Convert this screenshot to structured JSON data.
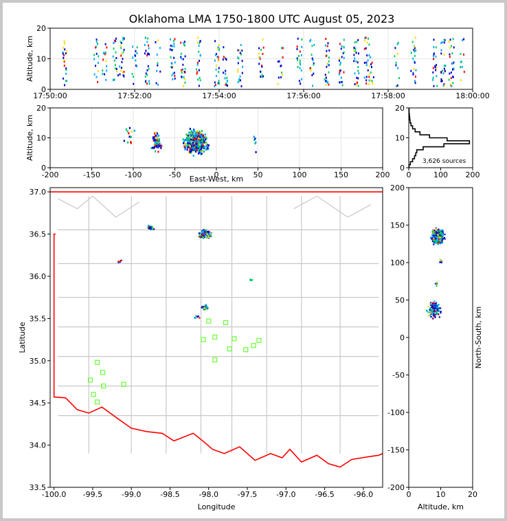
{
  "title": "Oklahoma LMA 1750-1800 UTC August 05, 2023",
  "colors": {
    "frame": "#c8c8c8",
    "border": "#ff0000",
    "county": "#c8c8c8",
    "station": "#66ff33",
    "histogram": "#000000",
    "source_palette": [
      "#0000cc",
      "#00aaff",
      "#00cc66",
      "#ffdd00",
      "#ff0000"
    ]
  },
  "chart_data": [
    {
      "id": "time-altitude",
      "type": "scatter",
      "xlabel": "",
      "ylabel": "Altitude, km",
      "xlim": [
        "17:50:00",
        "18:00:00"
      ],
      "ylim": [
        0,
        20
      ],
      "xticks": [
        "17:50:00",
        "17:52:00",
        "17:54:00",
        "17:56:00",
        "17:58:00",
        "18:00:00"
      ],
      "yticks": [
        0,
        10,
        20
      ],
      "burst_times_min": [
        0.35,
        1.1,
        1.3,
        1.55,
        1.7,
        2.0,
        2.3,
        2.55,
        2.9,
        3.15,
        3.5,
        3.95,
        4.15,
        4.5,
        5.0,
        5.45,
        5.9,
        6.2,
        6.55,
        6.9,
        7.25,
        7.5,
        7.6,
        8.2,
        8.6,
        9.1,
        9.3,
        9.5,
        9.75
      ],
      "altitude_range_km": [
        1,
        17
      ],
      "grid": true
    },
    {
      "id": "east-west-altitude",
      "type": "scatter",
      "xlabel": "East-West, km",
      "ylabel": "Altitude, km",
      "xlim": [
        -200,
        200
      ],
      "ylim": [
        0,
        20
      ],
      "xticks": [
        -200,
        -150,
        -100,
        -50,
        0,
        50,
        100,
        150,
        200
      ],
      "yticks": [
        0,
        10,
        20
      ],
      "clusters": [
        {
          "x": -25,
          "y": 8.5,
          "count": 500
        },
        {
          "x": -72,
          "y": 9,
          "count": 70
        },
        {
          "x": -105,
          "y": 10,
          "count": 12
        },
        {
          "x": 45,
          "y": 8.5,
          "count": 6
        }
      ],
      "grid": true
    },
    {
      "id": "altitude-histogram",
      "type": "line",
      "xlim": [
        0,
        200
      ],
      "ylim": [
        0,
        20
      ],
      "xticks": [
        0,
        100,
        200
      ],
      "yticks": [
        0,
        10,
        20
      ],
      "annotation": "3,626 sources",
      "profile": [
        {
          "altitude_km": 0.5,
          "count": 1
        },
        {
          "altitude_km": 1.5,
          "count": 5
        },
        {
          "altitude_km": 2.5,
          "count": 12
        },
        {
          "altitude_km": 3.5,
          "count": 18
        },
        {
          "altitude_km": 4.5,
          "count": 22
        },
        {
          "altitude_km": 5.5,
          "count": 25
        },
        {
          "altitude_km": 6.5,
          "count": 45
        },
        {
          "altitude_km": 7.5,
          "count": 110
        },
        {
          "altitude_km": 8.5,
          "count": 190
        },
        {
          "altitude_km": 9.5,
          "count": 120
        },
        {
          "altitude_km": 10.5,
          "count": 65
        },
        {
          "altitude_km": 11.5,
          "count": 35
        },
        {
          "altitude_km": 12.5,
          "count": 20
        },
        {
          "altitude_km": 13.5,
          "count": 12
        },
        {
          "altitude_km": 14.5,
          "count": 7
        },
        {
          "altitude_km": 15.5,
          "count": 4
        },
        {
          "altitude_km": 16.5,
          "count": 3
        },
        {
          "altitude_km": 17.5,
          "count": 2
        },
        {
          "altitude_km": 18.5,
          "count": 1
        },
        {
          "altitude_km": 19.5,
          "count": 1
        }
      ]
    },
    {
      "id": "plan-view-map",
      "type": "scatter",
      "xlabel": "Longitude",
      "ylabel": "Latitude",
      "xlim": [
        -100.05,
        -95.75
      ],
      "ylim": [
        33.5,
        37.05
      ],
      "xticks": [
        -100.0,
        -99.5,
        -99.0,
        -98.5,
        -98.0,
        -97.5,
        -97.0,
        -96.5,
        -96.0
      ],
      "xtick_labels": [
        "-100.0",
        "-99.5",
        "-99.0",
        "-98.5",
        "-98.0",
        "-97.5",
        "-97.0",
        "-96.5",
        "-96.0"
      ],
      "yticks": [
        33.5,
        34.0,
        34.5,
        35.0,
        35.5,
        36.0,
        36.5,
        37.0
      ],
      "ytick_labels": [
        "33.5",
        "34.0",
        "34.5",
        "35.0",
        "35.5",
        "36.0",
        "36.5",
        "37.0"
      ],
      "clusters": [
        {
          "lon": -98.05,
          "lat": 36.5,
          "count": 350
        },
        {
          "lon": -98.75,
          "lat": 36.58,
          "count": 40
        },
        {
          "lon": -98.05,
          "lat": 35.63,
          "count": 80
        },
        {
          "lon": -98.15,
          "lat": 35.52,
          "count": 12
        },
        {
          "lon": -99.15,
          "lat": 36.18,
          "count": 8
        },
        {
          "lon": -97.45,
          "lat": 35.95,
          "count": 5
        }
      ],
      "stations": [
        {
          "lon": -98.0,
          "lat": 35.47
        },
        {
          "lon": -97.78,
          "lat": 35.45
        },
        {
          "lon": -97.92,
          "lat": 35.28
        },
        {
          "lon": -98.07,
          "lat": 35.25
        },
        {
          "lon": -97.67,
          "lat": 35.26
        },
        {
          "lon": -97.35,
          "lat": 35.24
        },
        {
          "lon": -97.42,
          "lat": 35.18
        },
        {
          "lon": -97.73,
          "lat": 35.14
        },
        {
          "lon": -97.52,
          "lat": 35.13
        },
        {
          "lon": -97.92,
          "lat": 35.01
        },
        {
          "lon": -99.44,
          "lat": 34.98
        },
        {
          "lon": -99.37,
          "lat": 34.86
        },
        {
          "lon": -99.53,
          "lat": 34.77
        },
        {
          "lon": -99.1,
          "lat": 34.72
        },
        {
          "lon": -99.36,
          "lat": 34.7
        },
        {
          "lon": -99.49,
          "lat": 34.6
        },
        {
          "lon": -99.44,
          "lat": 34.51
        }
      ]
    },
    {
      "id": "north-south-altitude",
      "type": "scatter",
      "xlabel": "Altitude, km",
      "ylabel": "North-South, km",
      "xlim": [
        0,
        20
      ],
      "ylim": [
        -200,
        200
      ],
      "xticks": [
        0,
        10,
        20
      ],
      "yticks": [
        200,
        150,
        100,
        50,
        0,
        -50,
        -100,
        -150,
        -200
      ],
      "clusters": [
        {
          "x": 9,
          "y": 135,
          "count": 400
        },
        {
          "x": 8,
          "y": 36,
          "count": 140
        },
        {
          "x": 8.5,
          "y": 72,
          "count": 6
        },
        {
          "x": 10,
          "y": 102,
          "count": 8
        }
      ]
    }
  ]
}
